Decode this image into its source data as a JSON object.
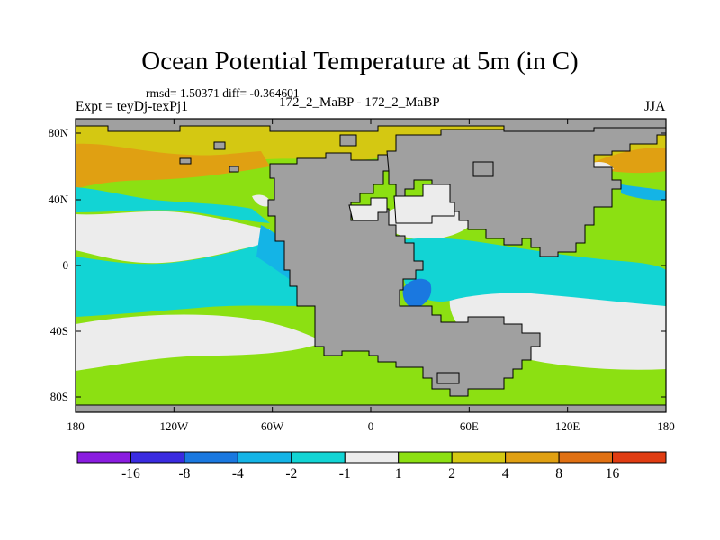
{
  "title": "Ocean Potential Temperature at 5m (in C)",
  "stats": "rmsd= 1.50371 diff= -0.364601",
  "expt": "Expt = teyDj-texPj1",
  "run": "172_2_MaBP - 172_2_MaBP",
  "season": "JJA",
  "lat_labels": [
    "80N",
    "40N",
    "0",
    "40S",
    "80S"
  ],
  "lon_labels": [
    "180",
    "120W",
    "60W",
    "0",
    "60E",
    "120E",
    "180"
  ],
  "colorbar": {
    "labels": [
      "-16",
      "-8",
      "-4",
      "-2",
      "-1",
      "1",
      "2",
      "4",
      "8",
      "16"
    ],
    "colors": [
      "#8a1ce0",
      "#3a2be0",
      "#1a78e0",
      "#14b4e6",
      "#12d4d4",
      "#ececec",
      "#8ce012",
      "#d4c812",
      "#e0a012",
      "#e07012",
      "#e03c12"
    ]
  },
  "map_colors": {
    "land": "#a0a0a0",
    "band_neg_1_to_1": "#ececec",
    "band_1_to_2": "#8ce012",
    "band_2_to_4": "#d4c812",
    "band_4_to_8": "#e0a012",
    "band_8_to_16": "#e07012",
    "band_neg_2_to_neg_1": "#12d4d4",
    "band_neg_4_to_neg_2": "#14b4e6",
    "band_neg_8_to_neg_4": "#1a78e0"
  }
}
